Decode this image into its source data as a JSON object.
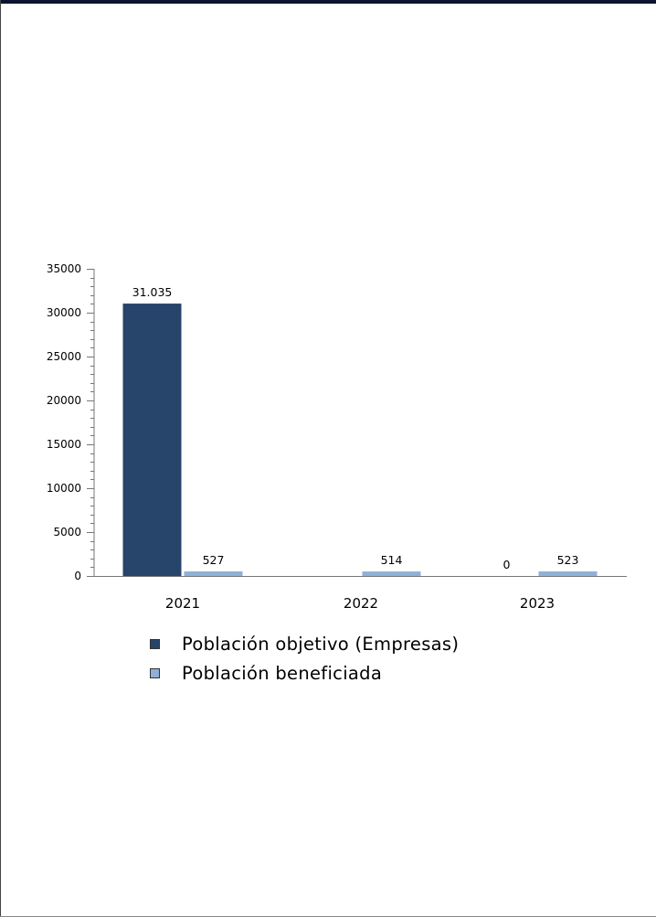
{
  "chart_data": {
    "type": "bar",
    "categories": [
      "2021",
      "2022",
      "2023"
    ],
    "series": [
      {
        "name": "Población objetivo (Empresas)",
        "values": [
          31035,
          null,
          0
        ],
        "labels": [
          "31.035",
          "",
          "0"
        ],
        "color": "#27446a"
      },
      {
        "name": "Población beneficiada",
        "values": [
          527,
          514,
          523
        ],
        "labels": [
          "527",
          "514",
          "523"
        ],
        "color": "#8fb1d7"
      }
    ],
    "ylim": [
      0,
      35000
    ],
    "yticks": [
      "0",
      "5000",
      "10000",
      "15000",
      "20000",
      "25000",
      "30000",
      "35000"
    ],
    "xlabel": "",
    "ylabel": "",
    "legend_position": "bottom"
  }
}
